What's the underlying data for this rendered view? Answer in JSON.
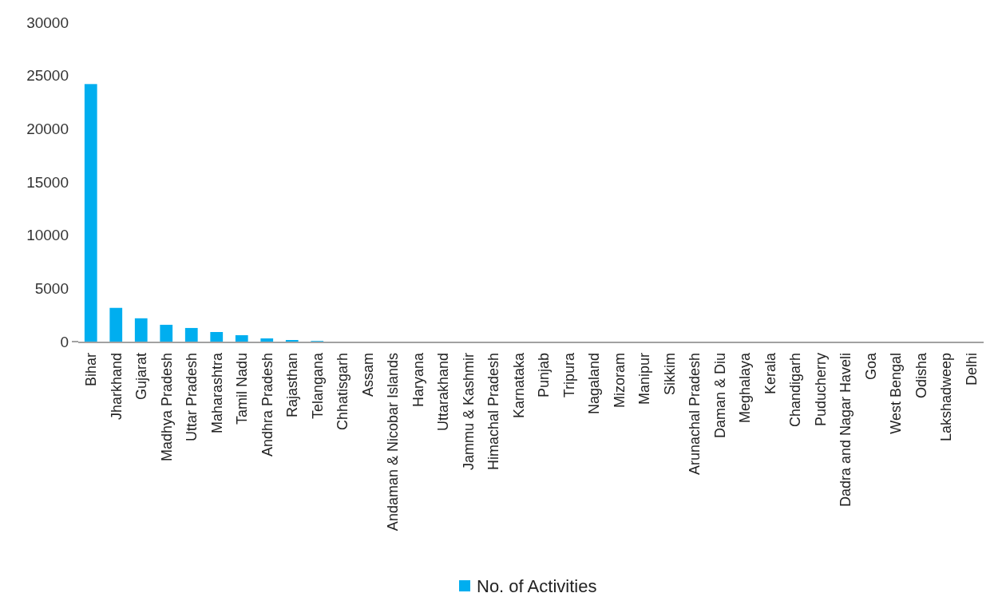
{
  "chart_data": {
    "type": "bar",
    "categories": [
      "Bihar",
      "Jharkhand",
      "Gujarat",
      "Madhya Pradesh",
      "Uttar Pradesh",
      "Maharashtra",
      "Tamil Nadu",
      "Andhra Pradesh",
      "Rajasthan",
      "Telangana",
      "Chhatisgarh",
      "Assam",
      "Andaman & Nicobar Islands",
      "Haryana",
      "Uttarakhand",
      "Jammu & Kashmir",
      "Himachal Pradesh",
      "Karnataka",
      "Punjab",
      "Tripura",
      "Nagaland",
      "Mizoram",
      "Manipur",
      "Sikkim",
      "Arunachal Pradesh",
      "Daman & Diu",
      "Meghalaya",
      "Kerala",
      "Chandigarh",
      "Puducherry",
      "Dadra and Nagar Haveli",
      "Goa",
      "West Bengal",
      "Odisha",
      "Lakshadweep",
      "Delhi"
    ],
    "series": [
      {
        "name": "No. of Activities",
        "color": "#00aeef",
        "values": [
          24200,
          3170,
          2190,
          1580,
          1280,
          900,
          600,
          300,
          150,
          60,
          0,
          0,
          0,
          0,
          0,
          0,
          0,
          0,
          0,
          0,
          0,
          0,
          0,
          0,
          0,
          0,
          0,
          0,
          0,
          0,
          0,
          0,
          0,
          0,
          0,
          0
        ]
      }
    ],
    "ylim": [
      0,
      30000
    ],
    "yticks": [
      0,
      5000,
      10000,
      15000,
      20000,
      25000,
      30000
    ],
    "grid": false,
    "legend": "bottom"
  }
}
